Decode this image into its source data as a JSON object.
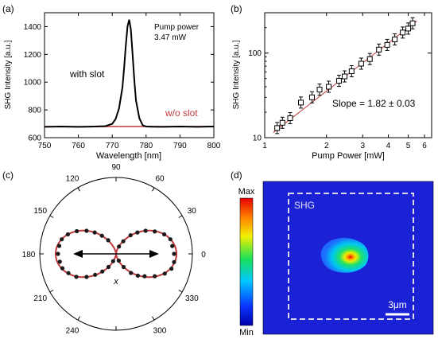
{
  "panels": {
    "a": "(a)",
    "b": "(b)",
    "c": "(c)",
    "d": "(d)"
  },
  "chart_data": [
    {
      "panel": "a",
      "type": "line",
      "xlabel": "Wavelength [nm]",
      "ylabel": "SHG Intensity [a.u.]",
      "xlim": [
        750,
        800
      ],
      "ylim": [
        600,
        1500
      ],
      "xticks": [
        750,
        760,
        770,
        780,
        790,
        800
      ],
      "yticks": [
        600,
        800,
        1000,
        1200,
        1400
      ],
      "annotation_lines": [
        "Pump power",
        "3.47 mW"
      ],
      "colors": {
        "with_slot": "#000000",
        "wo_slot": "#c0393b"
      },
      "series": [
        {
          "name": "with slot",
          "x": [
            750,
            755,
            760,
            765,
            768,
            770,
            771,
            772,
            773,
            773.5,
            774,
            774.5,
            775,
            775.5,
            776,
            776.5,
            777,
            778,
            779,
            780,
            782,
            785,
            790,
            795,
            800
          ],
          "y": [
            678,
            680,
            678,
            680,
            683,
            700,
            735,
            810,
            960,
            1100,
            1260,
            1400,
            1450,
            1380,
            1200,
            1020,
            870,
            740,
            690,
            680,
            679,
            678,
            680,
            678,
            680
          ]
        },
        {
          "name": "w/o slot",
          "x": [
            750,
            760,
            770,
            780,
            790,
            800
          ],
          "y": [
            680,
            678,
            680,
            680,
            679,
            680
          ]
        }
      ]
    },
    {
      "panel": "b",
      "type": "scatter",
      "xlabel": "Pump Power [mW]",
      "ylabel": "SHG Intensity [a.u.]",
      "scale": "log-log",
      "xlim": [
        1,
        6.5
      ],
      "ylim": [
        10,
        300
      ],
      "xticks": [
        1,
        2,
        3,
        4,
        5,
        6
      ],
      "yticks": [
        10,
        100
      ],
      "annotation": "Slope = 1.82 ± 0.03",
      "colors": {
        "markers": "#000000",
        "fit": "#c0393b"
      },
      "x": [
        1.15,
        1.22,
        1.33,
        1.5,
        1.7,
        1.85,
        2.05,
        2.3,
        2.45,
        2.65,
        2.95,
        3.25,
        3.6,
        3.95,
        4.3,
        4.7,
        5.0,
        5.25
      ],
      "y": [
        13,
        15,
        17,
        26,
        30,
        37,
        40,
        47,
        53,
        61,
        75,
        85,
        110,
        125,
        145,
        175,
        195,
        225
      ],
      "fit_line": {
        "x": [
          1.1,
          5.5
        ],
        "y": [
          11.5,
          240
        ]
      }
    },
    {
      "panel": "c",
      "type": "scatter",
      "coordinate_system": "polar",
      "angle_labels": [
        "0",
        "30",
        "60",
        "90",
        "120",
        "150",
        "180",
        "210",
        "240",
        "270",
        "300",
        "330"
      ],
      "axis_label": "x",
      "colors": {
        "markers": "#1a1a1a",
        "fit": "#c0393b"
      },
      "theta_deg": [
        0,
        8,
        15,
        22,
        30,
        38,
        45,
        52,
        60,
        68,
        120,
        128,
        135,
        142,
        150,
        158,
        165,
        172,
        180,
        188,
        195,
        202,
        210,
        218,
        225,
        232,
        240,
        248,
        292,
        300,
        308,
        315,
        322,
        330,
        338,
        345,
        352
      ],
      "r": [
        0.96,
        0.94,
        0.93,
        0.86,
        0.74,
        0.62,
        0.5,
        0.39,
        0.24,
        0.13,
        0.26,
        0.38,
        0.5,
        0.62,
        0.75,
        0.86,
        0.93,
        0.95,
        0.96,
        0.94,
        0.92,
        0.85,
        0.76,
        0.62,
        0.49,
        0.37,
        0.25,
        0.13,
        0.12,
        0.25,
        0.4,
        0.51,
        0.6,
        0.74,
        0.87,
        0.95,
        0.97
      ]
    },
    {
      "panel": "d",
      "type": "heatmap",
      "label": "SHG",
      "colorbar": {
        "max": "Max",
        "min": "Min"
      },
      "scalebar": "3μm",
      "colors": {
        "background": "#1b22d6"
      }
    }
  ]
}
